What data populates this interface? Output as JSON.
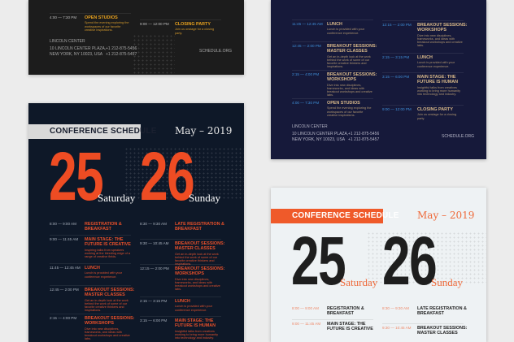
{
  "poster": {
    "header": "CONFERENCE SCHEDULE",
    "month": "May – 2019",
    "days": [
      {
        "number": "25",
        "weekday": "Saturday",
        "sessions": [
          {
            "time": "8:00 — 9:00 AM",
            "title": "Registration & Breakfast",
            "desc": ""
          },
          {
            "time": "9:00 — 11:45 AM",
            "title": "Main Stage: The Future is Creative",
            "desc": "Inspiring talks from speakers working at the bleeding edge of a range of creative fields."
          },
          {
            "time": "11:45 — 12:45 AM",
            "title": "Lunch",
            "desc": "Lunch is provided with your conference experience."
          },
          {
            "time": "12:45 — 2:00 PM",
            "title": "Breakout Sessions: Master Classes",
            "desc": "Get an in-depth look at the work behind the work of some of our favorite creative thinkers and inspirations."
          },
          {
            "time": "2:15 — 4:00 PM",
            "title": "Breakout Sessions: Workshops",
            "desc": "Dive into new disciplines, frameworks, and ideas with breakout workshops and creative labs."
          },
          {
            "time": "4:00 — 7:30 PM",
            "title": "Open Studios",
            "desc": "Spend the evening exploring the workspaces of our favorite creative inspirations."
          }
        ]
      },
      {
        "number": "26",
        "weekday": "Sunday",
        "sessions": [
          {
            "time": "8:30 — 9:30 AM",
            "title": "Late Registration & Breakfast",
            "desc": ""
          },
          {
            "time": "9:30 — 10:45 AM",
            "title": "Breakout Sessions: Master Classes",
            "desc": "Get an in-depth look at the work behind the work of some of our favorite creative thinkers and inspirations."
          },
          {
            "time": "12:15 — 2:00 PM",
            "title": "Breakout Sessions: Workshops",
            "desc": "Dive into new disciplines, frameworks, and ideas with breakout workshops and creative labs."
          },
          {
            "time": "2:15 — 3:15 PM",
            "title": "Lunch",
            "desc": "Lunch is provided with your conference experience."
          },
          {
            "time": "3:15 — 6:00 PM",
            "title": "Main Stage: The Future is Human",
            "desc": "Insightful talks from creatives working to bring more humanity into technology and industry."
          },
          {
            "time": "9:00 — 12:00 PM",
            "title": "Closing Party",
            "desc": "Join us onstage for a closing party."
          }
        ]
      }
    ],
    "footer": {
      "venue": "LINCOLN CENTER",
      "address1": "10 LINCOLN CENTER PLAZA,",
      "address2": "NEW YORK, NY 10023, USA",
      "phone1": "+1 212-875-5456",
      "phone2": "+1 212-875-5457",
      "website": "SCHEDULE.ORG"
    }
  },
  "themes": [
    {
      "name": "charcoal",
      "bg": "#1c1c1c",
      "bar": "#2a2a2a",
      "barText": "#e0a020",
      "month": "#dddddd",
      "num": "#e0a020",
      "wd": "#ffffff",
      "time": "#bdbdbd",
      "title": "#e8a21f",
      "desc": "#d49a2c",
      "foot": "#a8a8a8"
    },
    {
      "name": "navy",
      "bg": "#16193a",
      "bar": "#2a2f5a",
      "barText": "#d9b98a",
      "month": "#dddddd",
      "num": "#d9b98a",
      "wd": "#ffffff",
      "time": "#3f8fd8",
      "title": "#d9b98a",
      "desc": "#b09670",
      "foot": "#b8b8c8"
    },
    {
      "name": "midnight",
      "bg": "#0e1828",
      "bar": "#d9d9d9",
      "barText": "#1a2030",
      "month": "#e6e6e6",
      "num": "#ee4c23",
      "wd": "#ffffff",
      "time": "#a8b0bc",
      "title": "#e8502a",
      "desc": "#e0522e",
      "foot": "#a8b0bc"
    },
    {
      "name": "light",
      "bg": "#eef2f4",
      "bar": "#ef5a2a",
      "barText": "#ffffff",
      "month": "#ef6a3a",
      "num": "#1e1e1e",
      "wd": "#ef6a3a",
      "time": "#ef8a6a",
      "title": "#222222",
      "desc": "#555555",
      "foot": "#555555"
    }
  ]
}
